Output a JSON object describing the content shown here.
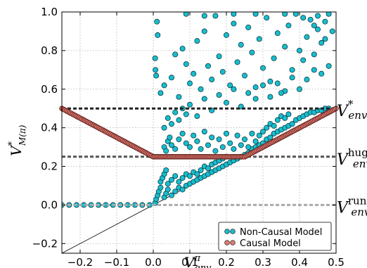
{
  "chart_data": {
    "type": "scatter",
    "xlim": [
      -0.25,
      0.5
    ],
    "ylim": [
      -0.25,
      1.0
    ],
    "grid": true,
    "legend_position": "bottom-right",
    "x_ticks": [
      "−0.2",
      "−0.1",
      "0.0",
      "0.1",
      "0.2",
      "0.3",
      "0.4",
      "0.5"
    ],
    "x_tick_values": [
      -0.2,
      -0.1,
      0.0,
      0.1,
      0.2,
      0.3,
      0.4,
      0.5
    ],
    "y_ticks": [
      "−0.2",
      "0.0",
      "0.2",
      "0.4",
      "0.6",
      "0.8",
      "1.0"
    ],
    "y_tick_values": [
      -0.2,
      0.0,
      0.2,
      0.4,
      0.6,
      0.8,
      1.0
    ],
    "xlabel": {
      "base": "V",
      "sup": "π",
      "sub": "env"
    },
    "ylabel": {
      "base": "V",
      "sup": "*",
      "sub": "M(π)"
    },
    "reference_lines": [
      {
        "y": 0.5,
        "label_base": "V",
        "label_sup": "*",
        "label_sub": "env",
        "color": "#222222"
      },
      {
        "y": 0.25,
        "label_base": "V",
        "label_sup": "hug",
        "label_sub": "env",
        "color": "#555555"
      },
      {
        "y": 0.0,
        "label_base": "V",
        "label_sup": "run",
        "label_sub": "env",
        "color": "#aaaaaa"
      }
    ],
    "diagonal": {
      "from": [
        -0.25,
        -0.25
      ],
      "to": [
        0.5,
        0.5
      ],
      "color": "#000000"
    },
    "series": [
      {
        "name": "Non-Causal Model",
        "color": "#17becf",
        "points": [
          [
            -0.25,
            0.0
          ],
          [
            -0.23,
            0.0
          ],
          [
            -0.21,
            0.0
          ],
          [
            -0.19,
            0.0
          ],
          [
            -0.17,
            0.0
          ],
          [
            -0.15,
            0.0
          ],
          [
            -0.13,
            0.0
          ],
          [
            -0.11,
            0.0
          ],
          [
            -0.09,
            0.0
          ],
          [
            -0.07,
            0.0
          ],
          [
            -0.05,
            0.0
          ],
          [
            -0.03,
            0.0
          ],
          [
            -0.01,
            0.0
          ],
          [
            0.005,
            0.01
          ],
          [
            0.008,
            0.03
          ],
          [
            0.012,
            0.05
          ],
          [
            0.015,
            0.07
          ],
          [
            0.02,
            0.09
          ],
          [
            0.03,
            0.04
          ],
          [
            0.035,
            0.06
          ],
          [
            0.04,
            0.08
          ],
          [
            0.05,
            0.05
          ],
          [
            0.06,
            0.07
          ],
          [
            0.07,
            0.09
          ],
          [
            0.08,
            0.08
          ],
          [
            0.09,
            0.1
          ],
          [
            0.1,
            0.11
          ],
          [
            0.11,
            0.12
          ],
          [
            0.12,
            0.13
          ],
          [
            0.13,
            0.14
          ],
          [
            0.14,
            0.15
          ],
          [
            0.15,
            0.16
          ],
          [
            0.16,
            0.17
          ],
          [
            0.17,
            0.18
          ],
          [
            0.18,
            0.19
          ],
          [
            0.19,
            0.2
          ],
          [
            0.2,
            0.21
          ],
          [
            0.21,
            0.22
          ],
          [
            0.22,
            0.23
          ],
          [
            0.23,
            0.24
          ],
          [
            0.24,
            0.25
          ],
          [
            0.25,
            0.26
          ],
          [
            0.26,
            0.27
          ],
          [
            0.27,
            0.29
          ],
          [
            0.28,
            0.3
          ],
          [
            0.29,
            0.31
          ],
          [
            0.3,
            0.32
          ],
          [
            0.31,
            0.34
          ],
          [
            0.32,
            0.35
          ],
          [
            0.33,
            0.37
          ],
          [
            0.34,
            0.38
          ],
          [
            0.35,
            0.39
          ],
          [
            0.36,
            0.4
          ],
          [
            0.37,
            0.41
          ],
          [
            0.38,
            0.42
          ],
          [
            0.39,
            0.44
          ],
          [
            0.4,
            0.45
          ],
          [
            0.41,
            0.46
          ],
          [
            0.42,
            0.47
          ],
          [
            0.43,
            0.48
          ],
          [
            0.44,
            0.48
          ],
          [
            0.45,
            0.49
          ],
          [
            0.46,
            0.49
          ],
          [
            0.47,
            0.5
          ],
          [
            0.48,
            0.5
          ],
          [
            0.02,
            0.12
          ],
          [
            0.025,
            0.14
          ],
          [
            0.03,
            0.16
          ],
          [
            0.035,
            0.18
          ],
          [
            0.04,
            0.11
          ],
          [
            0.05,
            0.13
          ],
          [
            0.06,
            0.15
          ],
          [
            0.07,
            0.12
          ],
          [
            0.08,
            0.14
          ],
          [
            0.09,
            0.16
          ],
          [
            0.1,
            0.15
          ],
          [
            0.11,
            0.17
          ],
          [
            0.12,
            0.16
          ],
          [
            0.13,
            0.18
          ],
          [
            0.14,
            0.2
          ],
          [
            0.15,
            0.19
          ],
          [
            0.16,
            0.21
          ],
          [
            0.17,
            0.22
          ],
          [
            0.18,
            0.23
          ],
          [
            0.19,
            0.24
          ],
          [
            0.2,
            0.25
          ],
          [
            0.03,
            0.3
          ],
          [
            0.035,
            0.28
          ],
          [
            0.04,
            0.33
          ],
          [
            0.045,
            0.35
          ],
          [
            0.05,
            0.31
          ],
          [
            0.06,
            0.29
          ],
          [
            0.07,
            0.34
          ],
          [
            0.08,
            0.37
          ],
          [
            0.09,
            0.32
          ],
          [
            0.1,
            0.3
          ],
          [
            0.11,
            0.36
          ],
          [
            0.12,
            0.33
          ],
          [
            0.13,
            0.29
          ],
          [
            0.14,
            0.38
          ],
          [
            0.15,
            0.31
          ],
          [
            0.16,
            0.35
          ],
          [
            0.17,
            0.28
          ],
          [
            0.18,
            0.34
          ],
          [
            0.19,
            0.3
          ],
          [
            0.2,
            0.37
          ],
          [
            0.21,
            0.32
          ],
          [
            0.22,
            0.29
          ],
          [
            0.23,
            0.36
          ],
          [
            0.24,
            0.31
          ],
          [
            0.25,
            0.34
          ],
          [
            0.26,
            0.3
          ],
          [
            0.27,
            0.37
          ],
          [
            0.28,
            0.33
          ],
          [
            0.29,
            0.36
          ],
          [
            0.3,
            0.38
          ],
          [
            0.31,
            0.4
          ],
          [
            0.32,
            0.42
          ],
          [
            0.33,
            0.41
          ],
          [
            0.34,
            0.44
          ],
          [
            0.35,
            0.46
          ],
          [
            0.36,
            0.45
          ],
          [
            0.37,
            0.47
          ],
          [
            0.03,
            0.4
          ],
          [
            0.04,
            0.45
          ],
          [
            0.05,
            0.42
          ],
          [
            0.06,
            0.48
          ],
          [
            0.07,
            0.44
          ],
          [
            0.08,
            0.5
          ],
          [
            0.09,
            0.47
          ],
          [
            0.1,
            0.52
          ],
          [
            0.12,
            0.46
          ],
          [
            0.14,
            0.55
          ],
          [
            0.16,
            0.49
          ],
          [
            0.18,
            0.57
          ],
          [
            0.2,
            0.53
          ],
          [
            0.22,
            0.6
          ],
          [
            0.24,
            0.51
          ],
          [
            0.26,
            0.58
          ],
          [
            0.28,
            0.55
          ],
          [
            0.3,
            0.62
          ],
          [
            0.32,
            0.56
          ],
          [
            0.34,
            0.63
          ],
          [
            0.36,
            0.59
          ],
          [
            0.38,
            0.66
          ],
          [
            0.4,
            0.6
          ],
          [
            0.42,
            0.65
          ],
          [
            0.44,
            0.7
          ],
          [
            0.46,
            0.68
          ],
          [
            0.48,
            0.72
          ],
          [
            0.005,
            0.76
          ],
          [
            0.006,
            0.7
          ],
          [
            0.008,
            0.67
          ],
          [
            0.01,
            0.95
          ],
          [
            0.012,
            0.88
          ],
          [
            0.02,
            0.58
          ],
          [
            0.03,
            0.62
          ],
          [
            0.05,
            0.66
          ],
          [
            0.06,
            0.78
          ],
          [
            0.07,
            0.56
          ],
          [
            0.08,
            0.81
          ],
          [
            0.09,
            0.73
          ],
          [
            0.1,
            0.63
          ],
          [
            0.11,
            0.68
          ],
          [
            0.12,
            0.85
          ],
          [
            0.13,
            0.6
          ],
          [
            0.14,
            0.9
          ],
          [
            0.15,
            0.72
          ],
          [
            0.16,
            0.65
          ],
          [
            0.17,
            0.98
          ],
          [
            0.18,
            0.77
          ],
          [
            0.19,
            0.69
          ],
          [
            0.2,
            0.88
          ],
          [
            0.21,
            0.62
          ],
          [
            0.22,
            0.94
          ],
          [
            0.23,
            0.74
          ],
          [
            0.24,
            0.83
          ],
          [
            0.25,
            0.67
          ],
          [
            0.26,
            0.92
          ],
          [
            0.27,
            0.79
          ],
          [
            0.28,
            0.61
          ],
          [
            0.29,
            0.86
          ],
          [
            0.3,
            0.71
          ],
          [
            0.31,
            0.97
          ],
          [
            0.32,
            0.64
          ],
          [
            0.33,
            0.76
          ],
          [
            0.34,
            0.89
          ],
          [
            0.35,
            0.58
          ],
          [
            0.36,
            0.82
          ],
          [
            0.37,
            0.93
          ],
          [
            0.38,
            0.7
          ],
          [
            0.39,
            0.99
          ],
          [
            0.4,
            0.8
          ],
          [
            0.41,
            0.75
          ],
          [
            0.42,
            0.87
          ],
          [
            0.43,
            0.96
          ],
          [
            0.44,
            0.78
          ],
          [
            0.45,
            0.91
          ],
          [
            0.46,
            0.84
          ],
          [
            0.47,
            0.95
          ],
          [
            0.48,
            0.99
          ],
          [
            0.49,
            0.9
          ],
          [
            0.45,
            0.98
          ],
          [
            0.47,
            0.86
          ],
          [
            0.44,
            0.93
          ],
          [
            0.41,
            0.97
          ],
          [
            0.36,
            0.99
          ],
          [
            0.28,
            0.99
          ],
          [
            0.22,
            0.99
          ],
          [
            0.14,
            0.98
          ],
          [
            0.09,
            0.99
          ]
        ]
      },
      {
        "name": "Causal Model",
        "color": "#e07a72",
        "segments": [
          {
            "from": [
              -0.25,
              0.5
            ],
            "to": [
              0.0,
              0.25
            ]
          },
          {
            "from": [
              0.0,
              0.25
            ],
            "to": [
              0.25,
              0.25
            ]
          },
          {
            "from": [
              0.25,
              0.25
            ],
            "to": [
              0.5,
              0.5
            ]
          }
        ]
      }
    ]
  }
}
